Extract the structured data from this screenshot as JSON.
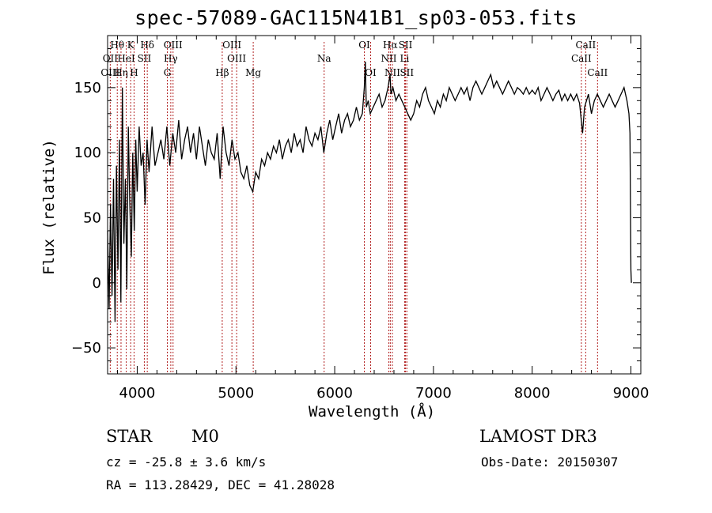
{
  "title": "spec-57089-GAC115N41B1_sp03-053.fits",
  "info": {
    "object_type": "STAR",
    "subclass": "M0",
    "survey": "LAMOST DR3",
    "cz": "cz = -25.8 ± 3.6 km/s",
    "obs_date": "Obs-Date: 20150307",
    "ra_dec": "RA = 113.28429, DEC =  41.28028"
  },
  "colors": {
    "line": "#000000",
    "marker": "#b22222",
    "text": "#000000"
  },
  "chart_data": {
    "type": "line",
    "title": "spec-57089-GAC115N41B1_sp03-053.fits",
    "xlabel": "Wavelength (Å)",
    "ylabel": "Flux (relative)",
    "xlim": [
      3700,
      9100
    ],
    "ylim": [
      -70,
      190
    ],
    "xticks": [
      4000,
      5000,
      6000,
      7000,
      8000,
      9000
    ],
    "yticks": [
      -50,
      0,
      50,
      100,
      150
    ],
    "series": [
      {
        "name": "flux",
        "x": [
          3700,
          3715,
          3730,
          3745,
          3760,
          3775,
          3790,
          3805,
          3820,
          3835,
          3850,
          3865,
          3880,
          3895,
          3910,
          3925,
          3940,
          3955,
          3970,
          3985,
          4000,
          4020,
          4040,
          4060,
          4080,
          4100,
          4120,
          4150,
          4180,
          4210,
          4240,
          4270,
          4300,
          4330,
          4360,
          4390,
          4420,
          4450,
          4480,
          4510,
          4540,
          4570,
          4600,
          4630,
          4660,
          4690,
          4720,
          4750,
          4780,
          4810,
          4840,
          4870,
          4900,
          4930,
          4960,
          4990,
          5020,
          5050,
          5080,
          5110,
          5140,
          5170,
          5200,
          5230,
          5260,
          5290,
          5320,
          5350,
          5380,
          5410,
          5440,
          5470,
          5500,
          5530,
          5560,
          5590,
          5620,
          5650,
          5680,
          5710,
          5740,
          5770,
          5800,
          5830,
          5860,
          5890,
          5920,
          5950,
          5980,
          6010,
          6040,
          6070,
          6100,
          6130,
          6160,
          6190,
          6220,
          6250,
          6280,
          6300,
          6310,
          6320,
          6340,
          6360,
          6390,
          6420,
          6450,
          6480,
          6510,
          6540,
          6560,
          6570,
          6590,
          6620,
          6650,
          6680,
          6710,
          6740,
          6770,
          6800,
          6830,
          6860,
          6890,
          6920,
          6950,
          6980,
          7010,
          7040,
          7070,
          7100,
          7130,
          7160,
          7190,
          7220,
          7250,
          7280,
          7310,
          7340,
          7370,
          7400,
          7430,
          7460,
          7490,
          7520,
          7550,
          7580,
          7610,
          7640,
          7670,
          7700,
          7730,
          7760,
          7790,
          7820,
          7850,
          7880,
          7910,
          7940,
          7970,
          8000,
          8030,
          8060,
          8090,
          8120,
          8150,
          8180,
          8210,
          8240,
          8270,
          8300,
          8330,
          8360,
          8390,
          8420,
          8450,
          8480,
          8510,
          8530,
          8550,
          8570,
          8600,
          8630,
          8660,
          8690,
          8720,
          8750,
          8780,
          8810,
          8840,
          8870,
          8900,
          8930,
          8960,
          8980,
          8990,
          9000,
          9005
        ],
        "values": [
          40,
          -20,
          60,
          -10,
          80,
          -30,
          90,
          10,
          110,
          -15,
          150,
          30,
          80,
          -5,
          120,
          60,
          20,
          100,
          40,
          110,
          70,
          120,
          90,
          100,
          60,
          110,
          85,
          120,
          90,
          100,
          110,
          95,
          120,
          90,
          115,
          100,
          125,
          95,
          110,
          120,
          100,
          115,
          95,
          120,
          105,
          90,
          110,
          100,
          95,
          115,
          80,
          120,
          100,
          90,
          110,
          95,
          100,
          85,
          80,
          90,
          75,
          70,
          85,
          80,
          95,
          90,
          100,
          95,
          105,
          100,
          110,
          95,
          105,
          110,
          100,
          115,
          105,
          110,
          100,
          120,
          110,
          105,
          115,
          110,
          120,
          100,
          115,
          125,
          110,
          120,
          130,
          115,
          125,
          130,
          120,
          125,
          135,
          125,
          130,
          150,
          170,
          135,
          140,
          130,
          135,
          140,
          145,
          135,
          140,
          150,
          160,
          145,
          150,
          140,
          145,
          140,
          135,
          130,
          125,
          130,
          140,
          135,
          145,
          150,
          140,
          135,
          130,
          140,
          135,
          145,
          140,
          150,
          145,
          140,
          145,
          150,
          145,
          150,
          140,
          150,
          155,
          150,
          145,
          150,
          155,
          160,
          150,
          155,
          150,
          145,
          150,
          155,
          150,
          145,
          150,
          148,
          145,
          150,
          145,
          148,
          145,
          150,
          140,
          145,
          150,
          145,
          140,
          145,
          148,
          140,
          145,
          140,
          145,
          140,
          145,
          138,
          115,
          135,
          140,
          145,
          130,
          140,
          145,
          140,
          135,
          140,
          145,
          140,
          135,
          140,
          145,
          150,
          140,
          130,
          115,
          10,
          0
        ]
      }
    ],
    "annotations": [
      {
        "label": "Hθ",
        "wavelength": 3798,
        "row": 1
      },
      {
        "label": "OII",
        "wavelength": 3727,
        "row": 2
      },
      {
        "label": "OIII",
        "wavelength": 3727,
        "row": 3
      },
      {
        "label": "Hη",
        "wavelength": 3836,
        "row": 3
      },
      {
        "label": "HeI",
        "wavelength": 3889,
        "row": 2
      },
      {
        "label": "K",
        "wavelength": 3934,
        "row": 1
      },
      {
        "label": "H",
        "wavelength": 3968,
        "row": 3
      },
      {
        "label": "SII",
        "wavelength": 4072,
        "row": 2
      },
      {
        "label": "Hδ",
        "wavelength": 4102,
        "row": 1
      },
      {
        "label": "OIII",
        "wavelength": 4363,
        "row": 1
      },
      {
        "label": "Hγ",
        "wavelength": 4340,
        "row": 2
      },
      {
        "label": "G",
        "wavelength": 4305,
        "row": 3
      },
      {
        "label": "Hβ",
        "wavelength": 4861,
        "row": 3
      },
      {
        "label": "OIII",
        "wavelength": 4959,
        "row": 1
      },
      {
        "label": "OIII",
        "wavelength": 5007,
        "row": 2
      },
      {
        "label": "Mg",
        "wavelength": 5175,
        "row": 3
      },
      {
        "label": "Na",
        "wavelength": 5893,
        "row": 2
      },
      {
        "label": "OI",
        "wavelength": 6300,
        "row": 1
      },
      {
        "label": "OI",
        "wavelength": 6364,
        "row": 3
      },
      {
        "label": "Hα",
        "wavelength": 6563,
        "row": 1
      },
      {
        "label": "NII",
        "wavelength": 6548,
        "row": 2
      },
      {
        "label": "NII",
        "wavelength": 6584,
        "row": 3
      },
      {
        "label": "SII",
        "wavelength": 6717,
        "row": 1
      },
      {
        "label": "Li",
        "wavelength": 6708,
        "row": 2
      },
      {
        "label": "SII",
        "wavelength": 6731,
        "row": 3
      },
      {
        "label": "CaII",
        "wavelength": 8542,
        "row": 1
      },
      {
        "label": "CaII",
        "wavelength": 8498,
        "row": 2
      },
      {
        "label": "CaII",
        "wavelength": 8662,
        "row": 3
      }
    ]
  }
}
